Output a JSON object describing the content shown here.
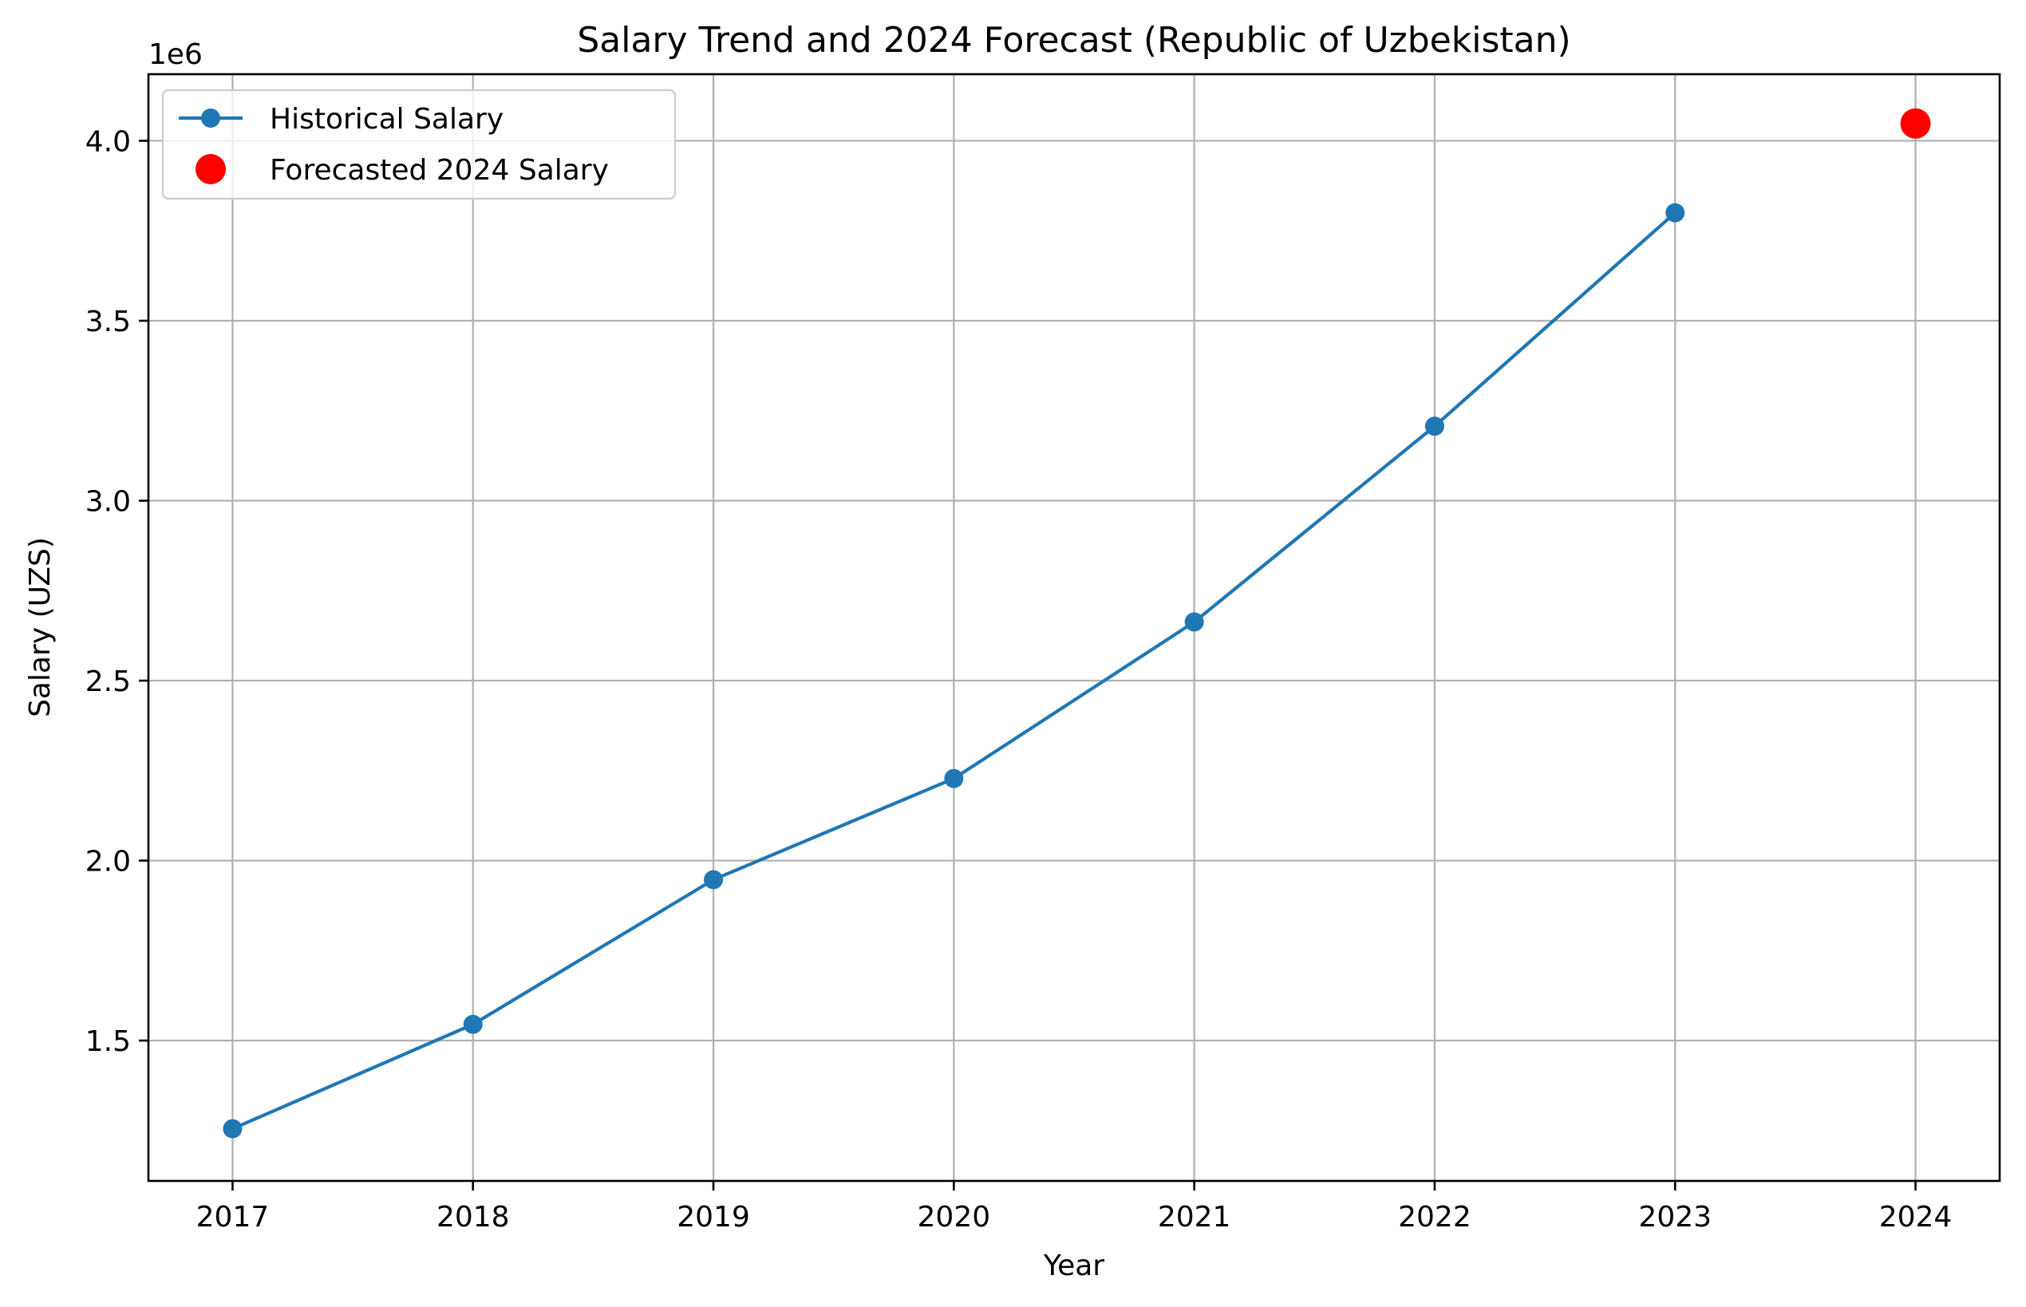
{
  "chart_data": {
    "type": "line",
    "title": "Salary Trend and 2024 Forecast (Republic of Uzbekistan)",
    "xlabel": "Year",
    "ylabel": "Salary (UZS)",
    "y_offset_label": "1e6",
    "xlim": [
      2016.65,
      2024.35
    ],
    "ylim": [
      1.11,
      4.185
    ],
    "x_ticks": [
      "2017",
      "2018",
      "2019",
      "2020",
      "2021",
      "2022",
      "2023",
      "2024"
    ],
    "y_ticks": [
      "1.5",
      "2.0",
      "2.5",
      "3.0",
      "3.5",
      "4.0"
    ],
    "grid": true,
    "legend_position": "top-left",
    "series": [
      {
        "name": "Historical Salary",
        "color": "#1f77b4",
        "marker": "circle",
        "line": true,
        "x": [
          2017,
          2018,
          2019,
          2020,
          2021,
          2022,
          2023
        ],
        "y": [
          1.255,
          1.545,
          1.947,
          2.228,
          2.663,
          3.207,
          3.8
        ]
      },
      {
        "name": "Forecasted 2024 Salary",
        "color": "#ff0000",
        "marker": "circle-large",
        "line": false,
        "x": [
          2024
        ],
        "y": [
          4.048
        ]
      }
    ]
  }
}
